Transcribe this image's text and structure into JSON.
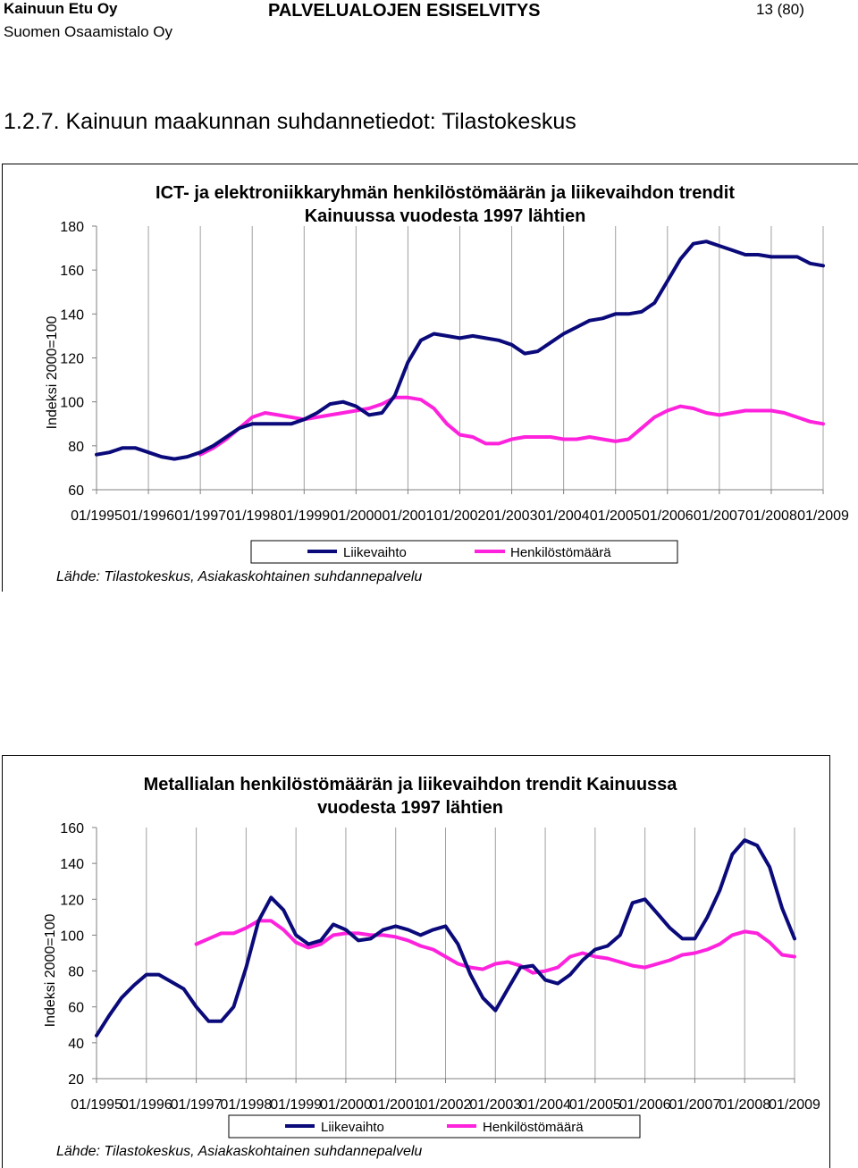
{
  "header": {
    "company": "Kainuun Etu Oy",
    "consultant": "Suomen Osaamistalo Oy",
    "document_title": "PALVELUALOJEN ESISELVITYS",
    "page": "13 (80)"
  },
  "section": {
    "title": "1.2.7. Kainuun maakunnan suhdannetiedot: Tilastokeskus"
  },
  "colors": {
    "liikevaihto": "#0a0a7a",
    "henkilostomaara": "#ff22dd",
    "grid": "#a0a0a0"
  },
  "chart_data": [
    {
      "type": "line",
      "title_line1": "ICT- ja elektroniikkaryhmän henkilöstömäärän ja liikevaihdon trendit",
      "title_line2": "Kainuussa vuodesta 1997 lähtien",
      "ylabel": "Indeksi 2000=100",
      "ylim": [
        60,
        180
      ],
      "yticks": [
        "60",
        "80",
        "100",
        "120",
        "140",
        "160",
        "180"
      ],
      "xlabels": [
        "01/1995",
        "01/1996",
        "01/1997",
        "01/1998",
        "01/1999",
        "01/2000",
        "01/2001",
        "01/2002",
        "01/2003",
        "01/2004",
        "01/2005",
        "01/2006",
        "01/2007",
        "01/2008",
        "01/2009"
      ],
      "x": [
        0,
        0.25,
        0.5,
        0.75,
        1,
        1.25,
        1.5,
        1.75,
        2,
        2.25,
        2.5,
        2.75,
        3,
        3.25,
        3.5,
        3.75,
        4,
        4.25,
        4.5,
        4.75,
        5,
        5.25,
        5.5,
        5.75,
        6,
        6.25,
        6.5,
        6.75,
        7,
        7.25,
        7.5,
        7.75,
        8,
        8.25,
        8.5,
        8.75,
        9,
        9.25,
        9.5,
        9.75,
        10,
        10.25,
        10.5,
        10.75,
        11,
        11.25,
        11.5,
        11.75,
        12,
        12.25,
        12.5,
        12.75,
        13,
        13.25,
        13.5,
        13.75,
        14
      ],
      "series": [
        {
          "name": "Liikevaihto",
          "values": [
            76,
            77,
            79,
            79,
            77,
            75,
            74,
            75,
            77,
            80,
            84,
            88,
            90,
            90,
            90,
            90,
            92,
            95,
            99,
            100,
            98,
            94,
            95,
            103,
            118,
            128,
            131,
            130,
            129,
            130,
            129,
            128,
            126,
            122,
            123,
            127,
            131,
            134,
            137,
            138,
            140,
            140,
            141,
            145,
            155,
            165,
            172,
            173,
            171,
            169,
            167,
            167,
            166,
            166,
            166,
            163,
            162
          ]
        },
        {
          "name": "Henkilöstömäärä",
          "values": [
            null,
            null,
            null,
            null,
            null,
            null,
            null,
            null,
            76,
            79,
            83,
            88,
            93,
            95,
            94,
            93,
            92,
            93,
            94,
            95,
            96,
            97,
            99,
            102,
            102,
            101,
            97,
            90,
            85,
            84,
            81,
            81,
            83,
            84,
            84,
            84,
            83,
            83,
            84,
            83,
            82,
            83,
            88,
            93,
            96,
            98,
            97,
            95,
            94,
            95,
            96,
            96,
            96,
            95,
            93,
            91,
            90
          ]
        }
      ],
      "legend": "bottom",
      "source": "Lähde: Tilastokeskus, Asiakaskohtainen suhdannepalvelu"
    },
    {
      "type": "line",
      "title_line1": "Metallialan henkilöstömäärän ja liikevaihdon trendit Kainuussa",
      "title_line2": "vuodesta 1997 lähtien",
      "ylabel": "Indeksi 2000=100",
      "ylim": [
        20,
        160
      ],
      "yticks": [
        "20",
        "40",
        "60",
        "80",
        "100",
        "120",
        "140",
        "160"
      ],
      "xlabels": [
        "01/1995",
        "01/1996",
        "01/1997",
        "01/1998",
        "01/1999",
        "01/2000",
        "01/2001",
        "01/2002",
        "01/2003",
        "01/2004",
        "01/2005",
        "01/2006",
        "01/2007",
        "01/2008",
        "01/2009"
      ],
      "x": [
        0,
        0.25,
        0.5,
        0.75,
        1,
        1.25,
        1.5,
        1.75,
        2,
        2.25,
        2.5,
        2.75,
        3,
        3.25,
        3.5,
        3.75,
        4,
        4.25,
        4.5,
        4.75,
        5,
        5.25,
        5.5,
        5.75,
        6,
        6.25,
        6.5,
        6.75,
        7,
        7.25,
        7.5,
        7.75,
        8,
        8.25,
        8.5,
        8.75,
        9,
        9.25,
        9.5,
        9.75,
        10,
        10.25,
        10.5,
        10.75,
        11,
        11.25,
        11.5,
        11.75,
        12,
        12.25,
        12.5,
        12.75,
        13,
        13.25,
        13.5,
        13.75,
        14
      ],
      "series": [
        {
          "name": "Liikevaihto",
          "values": [
            44,
            55,
            65,
            72,
            78,
            78,
            74,
            70,
            60,
            52,
            52,
            60,
            82,
            108,
            121,
            114,
            100,
            95,
            97,
            106,
            103,
            97,
            98,
            103,
            105,
            103,
            100,
            103,
            105,
            95,
            78,
            65,
            58,
            70,
            82,
            83,
            75,
            73,
            78,
            86,
            92,
            94,
            100,
            118,
            120,
            112,
            104,
            98,
            98,
            110,
            125,
            145,
            153,
            150,
            138,
            115,
            98
          ]
        },
        {
          "name": "Henkilöstömäärä",
          "values": [
            null,
            null,
            null,
            null,
            null,
            null,
            null,
            null,
            95,
            98,
            101,
            101,
            104,
            108,
            108,
            103,
            96,
            93,
            95,
            100,
            101,
            101,
            100,
            100,
            99,
            97,
            94,
            92,
            88,
            84,
            82,
            81,
            84,
            85,
            83,
            79,
            80,
            82,
            88,
            90,
            88,
            87,
            85,
            83,
            82,
            84,
            86,
            89,
            90,
            92,
            95,
            100,
            102,
            101,
            96,
            89,
            88
          ]
        }
      ],
      "legend": "bottom",
      "source": "Lähde: Tilastokeskus, Asiakaskohtainen suhdannepalvelu"
    }
  ]
}
